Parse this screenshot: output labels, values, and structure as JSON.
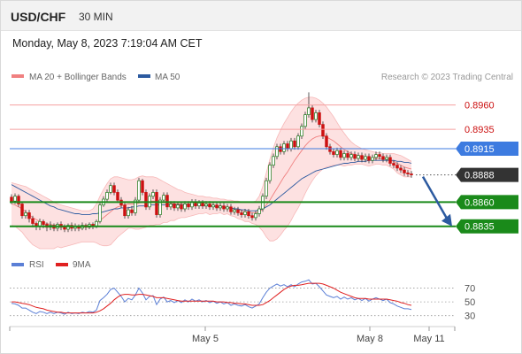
{
  "header": {
    "symbol": "USD/CHF",
    "timeframe": "30 MIN"
  },
  "datetime": "Monday, May 8, 2023 7:19:04 AM CET",
  "legend_price": [
    {
      "label": "MA 20 + Bollinger Bands",
      "color": "#f08080"
    },
    {
      "label": "MA 50",
      "color": "#2c5aa0"
    }
  ],
  "credit": "Research © 2023 Trading Central",
  "legend_rsi": [
    {
      "label": "RSI",
      "color": "#5b7fd6"
    },
    {
      "label": "9MA",
      "color": "#e02020"
    }
  ],
  "colors": {
    "resistance": "#f4a0a0",
    "resistance_label": "#cc1111",
    "pivot": "#3d7be0",
    "support": "#1a8a1a",
    "current": "#333333",
    "arrow": "#2c5aa0",
    "band_fill": "#fde1e1",
    "candle_up": "#1a7a1a",
    "candle_down": "#cc1111"
  },
  "chart_data": {
    "type": "candlestick",
    "price_levels": [
      {
        "value": 0.896,
        "label": "0.8960",
        "kind": "resistance"
      },
      {
        "value": 0.8935,
        "label": "0.8935",
        "kind": "resistance"
      },
      {
        "value": 0.8915,
        "label": "0.8915",
        "kind": "pivot"
      },
      {
        "value": 0.8888,
        "label": "0.8888",
        "kind": "current"
      },
      {
        "value": 0.886,
        "label": "0.8860",
        "kind": "support"
      },
      {
        "value": 0.8835,
        "label": "0.8835",
        "kind": "support"
      }
    ],
    "price_range": [
      0.8822,
      0.8977
    ],
    "x_ticks": [
      "May 5",
      "May 8",
      "May 11"
    ],
    "candles": [
      [
        0.8865,
        0.8861,
        0.8868,
        0.8858
      ],
      [
        0.8861,
        0.8866,
        0.8869,
        0.8858
      ],
      [
        0.8866,
        0.8858,
        0.8868,
        0.8855
      ],
      [
        0.8858,
        0.8846,
        0.886,
        0.8843
      ],
      [
        0.8846,
        0.8849,
        0.8852,
        0.8843
      ],
      [
        0.8849,
        0.8843,
        0.8852,
        0.8839
      ],
      [
        0.8843,
        0.8838,
        0.8846,
        0.8834
      ],
      [
        0.8838,
        0.8835,
        0.884,
        0.8831
      ],
      [
        0.8835,
        0.884,
        0.8843,
        0.8831
      ],
      [
        0.884,
        0.8837,
        0.8842,
        0.8833
      ],
      [
        0.8837,
        0.8834,
        0.8839,
        0.883
      ],
      [
        0.8834,
        0.8836,
        0.884,
        0.8831
      ],
      [
        0.8836,
        0.8833,
        0.8838,
        0.883
      ],
      [
        0.8833,
        0.8837,
        0.8839,
        0.883
      ],
      [
        0.8837,
        0.8834,
        0.884,
        0.8831
      ],
      [
        0.8834,
        0.8832,
        0.8837,
        0.8829
      ],
      [
        0.8832,
        0.8836,
        0.8838,
        0.8829
      ],
      [
        0.8836,
        0.8833,
        0.8839,
        0.883
      ],
      [
        0.8833,
        0.8835,
        0.8838,
        0.883
      ],
      [
        0.8835,
        0.8833,
        0.8837,
        0.883
      ],
      [
        0.8833,
        0.8836,
        0.8839,
        0.8831
      ],
      [
        0.8836,
        0.8834,
        0.8838,
        0.8831
      ],
      [
        0.8834,
        0.8837,
        0.8839,
        0.8832
      ],
      [
        0.8837,
        0.8835,
        0.8839,
        0.8832
      ],
      [
        0.8835,
        0.884,
        0.8842,
        0.8833
      ],
      [
        0.884,
        0.8857,
        0.8859,
        0.8838
      ],
      [
        0.8857,
        0.8863,
        0.8866,
        0.8855
      ],
      [
        0.8863,
        0.887,
        0.8873,
        0.886
      ],
      [
        0.887,
        0.8877,
        0.888,
        0.8868
      ],
      [
        0.8877,
        0.887,
        0.888,
        0.8867
      ],
      [
        0.887,
        0.8862,
        0.8873,
        0.8859
      ],
      [
        0.8862,
        0.8857,
        0.8865,
        0.8854
      ],
      [
        0.8857,
        0.8846,
        0.8859,
        0.8843
      ],
      [
        0.8846,
        0.8852,
        0.8855,
        0.8843
      ],
      [
        0.8852,
        0.8849,
        0.8856,
        0.8846
      ],
      [
        0.8849,
        0.8862,
        0.8865,
        0.8846
      ],
      [
        0.8862,
        0.8882,
        0.8885,
        0.8859
      ],
      [
        0.8882,
        0.887,
        0.8884,
        0.8867
      ],
      [
        0.887,
        0.8855,
        0.8873,
        0.8852
      ],
      [
        0.8855,
        0.8866,
        0.8869,
        0.8852
      ],
      [
        0.8866,
        0.887,
        0.8873,
        0.8863
      ],
      [
        0.887,
        0.8847,
        0.8873,
        0.8844
      ],
      [
        0.8847,
        0.8862,
        0.8865,
        0.8844
      ],
      [
        0.8862,
        0.8867,
        0.887,
        0.8859
      ],
      [
        0.8867,
        0.8855,
        0.887,
        0.8852
      ],
      [
        0.8855,
        0.8858,
        0.8861,
        0.8852
      ],
      [
        0.8858,
        0.8854,
        0.8861,
        0.8851
      ],
      [
        0.8854,
        0.8857,
        0.886,
        0.8851
      ],
      [
        0.8857,
        0.8853,
        0.886,
        0.885
      ],
      [
        0.8853,
        0.8858,
        0.8861,
        0.885
      ],
      [
        0.8858,
        0.8855,
        0.8861,
        0.8852
      ],
      [
        0.8855,
        0.886,
        0.8863,
        0.8852
      ],
      [
        0.886,
        0.8856,
        0.8863,
        0.8853
      ],
      [
        0.8856,
        0.8859,
        0.8862,
        0.8853
      ],
      [
        0.8859,
        0.8856,
        0.8862,
        0.8853
      ],
      [
        0.8856,
        0.8858,
        0.8861,
        0.8853
      ],
      [
        0.8858,
        0.8855,
        0.8861,
        0.8852
      ],
      [
        0.8855,
        0.8857,
        0.886,
        0.8852
      ],
      [
        0.8857,
        0.8854,
        0.886,
        0.8851
      ],
      [
        0.8854,
        0.8856,
        0.8859,
        0.8851
      ],
      [
        0.8856,
        0.8853,
        0.8859,
        0.885
      ],
      [
        0.8853,
        0.8855,
        0.8858,
        0.885
      ],
      [
        0.8855,
        0.885,
        0.8858,
        0.8847
      ],
      [
        0.885,
        0.8852,
        0.8855,
        0.8847
      ],
      [
        0.8852,
        0.8849,
        0.8855,
        0.8846
      ],
      [
        0.8849,
        0.8847,
        0.8852,
        0.8844
      ],
      [
        0.8847,
        0.885,
        0.8853,
        0.8844
      ],
      [
        0.885,
        0.8846,
        0.8853,
        0.8843
      ],
      [
        0.8846,
        0.8844,
        0.8849,
        0.8841
      ],
      [
        0.8844,
        0.8848,
        0.8851,
        0.8841
      ],
      [
        0.8848,
        0.8853,
        0.8856,
        0.8845
      ],
      [
        0.8853,
        0.8866,
        0.8869,
        0.885
      ],
      [
        0.8866,
        0.8882,
        0.8885,
        0.8863
      ],
      [
        0.8882,
        0.8898,
        0.8901,
        0.8879
      ],
      [
        0.8898,
        0.8907,
        0.891,
        0.8895
      ],
      [
        0.8907,
        0.8917,
        0.892,
        0.8904
      ],
      [
        0.8917,
        0.8912,
        0.892,
        0.8909
      ],
      [
        0.8912,
        0.892,
        0.8923,
        0.8909
      ],
      [
        0.892,
        0.8915,
        0.8923,
        0.8912
      ],
      [
        0.8915,
        0.8923,
        0.8926,
        0.8912
      ],
      [
        0.8923,
        0.8917,
        0.8926,
        0.8914
      ],
      [
        0.8917,
        0.8928,
        0.8931,
        0.8914
      ],
      [
        0.8928,
        0.8938,
        0.8941,
        0.8925
      ],
      [
        0.8938,
        0.895,
        0.8953,
        0.8935
      ],
      [
        0.895,
        0.8957,
        0.8973,
        0.8947
      ],
      [
        0.8957,
        0.8945,
        0.896,
        0.8942
      ],
      [
        0.8945,
        0.8952,
        0.8955,
        0.8942
      ],
      [
        0.8952,
        0.894,
        0.8955,
        0.8937
      ],
      [
        0.894,
        0.8928,
        0.8943,
        0.8925
      ],
      [
        0.8928,
        0.8917,
        0.8931,
        0.8914
      ],
      [
        0.8917,
        0.8912,
        0.892,
        0.8909
      ],
      [
        0.8912,
        0.8909,
        0.8915,
        0.8906
      ],
      [
        0.8909,
        0.8913,
        0.8916,
        0.8906
      ],
      [
        0.8913,
        0.8906,
        0.8916,
        0.8903
      ],
      [
        0.8906,
        0.891,
        0.8913,
        0.8903
      ],
      [
        0.891,
        0.8906,
        0.8913,
        0.8903
      ],
      [
        0.8906,
        0.8909,
        0.8912,
        0.8903
      ],
      [
        0.8909,
        0.8905,
        0.8912,
        0.8902
      ],
      [
        0.8905,
        0.8908,
        0.8911,
        0.8902
      ],
      [
        0.8908,
        0.8904,
        0.8911,
        0.8901
      ],
      [
        0.8904,
        0.8907,
        0.891,
        0.8901
      ],
      [
        0.8907,
        0.8903,
        0.891,
        0.89
      ],
      [
        0.8903,
        0.8906,
        0.8909,
        0.89
      ],
      [
        0.8906,
        0.8909,
        0.8912,
        0.8903
      ],
      [
        0.8909,
        0.8907,
        0.8912,
        0.8904
      ],
      [
        0.8907,
        0.8904,
        0.891,
        0.8901
      ],
      [
        0.8904,
        0.8906,
        0.8909,
        0.8901
      ],
      [
        0.8906,
        0.89,
        0.8909,
        0.8897
      ],
      [
        0.89,
        0.8898,
        0.8903,
        0.8895
      ],
      [
        0.8898,
        0.8895,
        0.8901,
        0.8892
      ],
      [
        0.8895,
        0.8893,
        0.8898,
        0.889
      ],
      [
        0.8893,
        0.889,
        0.8896,
        0.8887
      ],
      [
        0.889,
        0.8889,
        0.8893,
        0.8886
      ],
      [
        0.8889,
        0.8888,
        0.8892,
        0.8885
      ]
    ],
    "ma20": [
      0.8858,
      0.8857,
      0.8855,
      0.8853,
      0.885,
      0.8847,
      0.8844,
      0.8842,
      0.884,
      0.8839,
      0.8838,
      0.8837,
      0.8836,
      0.8836,
      0.8835,
      0.8835,
      0.8835,
      0.8835,
      0.8835,
      0.8835,
      0.8835,
      0.8835,
      0.8835,
      0.8836,
      0.8838,
      0.8841,
      0.8844,
      0.8847,
      0.885,
      0.8853,
      0.8855,
      0.8856,
      0.8857,
      0.8858,
      0.8858,
      0.8858,
      0.8859,
      0.886,
      0.886,
      0.8861,
      0.8861,
      0.8861,
      0.886,
      0.886,
      0.8859,
      0.8859,
      0.8858,
      0.8858,
      0.8858,
      0.8857,
      0.8857,
      0.8857,
      0.8857,
      0.8857,
      0.8857,
      0.8857,
      0.8856,
      0.8856,
      0.8856,
      0.8856,
      0.8855,
      0.8855,
      0.8854,
      0.8853,
      0.8852,
      0.8851,
      0.885,
      0.885,
      0.8849,
      0.8849,
      0.885,
      0.8853,
      0.8857,
      0.8862,
      0.8868,
      0.8874,
      0.888,
      0.8886,
      0.8891,
      0.8897,
      0.8903,
      0.8908,
      0.8913,
      0.8918,
      0.8922,
      0.8925,
      0.8927,
      0.8928,
      0.8928,
      0.8927,
      0.8925,
      0.8923,
      0.892,
      0.8917,
      0.8914,
      0.8912,
      0.891,
      0.8909,
      0.8908,
      0.8907,
      0.8906,
      0.8905,
      0.8905,
      0.8905,
      0.8905,
      0.8904,
      0.8904,
      0.8903,
      0.8902,
      0.89,
      0.8898,
      0.8896,
      0.8895,
      0.8894
    ],
    "bb_upper": [
      0.888,
      0.8879,
      0.8878,
      0.8877,
      0.8876,
      0.8874,
      0.8872,
      0.887,
      0.8868,
      0.8866,
      0.8864,
      0.8862,
      0.886,
      0.8858,
      0.8857,
      0.8856,
      0.8855,
      0.8854,
      0.8853,
      0.8852,
      0.8851,
      0.8851,
      0.8851,
      0.8853,
      0.8858,
      0.8866,
      0.8873,
      0.8879,
      0.8884,
      0.8886,
      0.8886,
      0.8885,
      0.8884,
      0.8883,
      0.8883,
      0.8884,
      0.8886,
      0.8887,
      0.8886,
      0.8886,
      0.8886,
      0.8885,
      0.8883,
      0.8881,
      0.8879,
      0.8877,
      0.8875,
      0.8873,
      0.8872,
      0.887,
      0.8869,
      0.8868,
      0.8867,
      0.8866,
      0.8866,
      0.8865,
      0.8865,
      0.8864,
      0.8864,
      0.8863,
      0.8863,
      0.8862,
      0.8862,
      0.8861,
      0.8861,
      0.886,
      0.886,
      0.886,
      0.886,
      0.8861,
      0.8866,
      0.8876,
      0.889,
      0.8904,
      0.8916,
      0.8926,
      0.8934,
      0.8941,
      0.8947,
      0.8953,
      0.8958,
      0.8962,
      0.8965,
      0.8967,
      0.8968,
      0.8968,
      0.8967,
      0.8965,
      0.8962,
      0.8958,
      0.8953,
      0.8948,
      0.8942,
      0.8936,
      0.8931,
      0.8926,
      0.8922,
      0.8919,
      0.8917,
      0.8915,
      0.8914,
      0.8913,
      0.8912,
      0.8911,
      0.8911,
      0.891,
      0.891,
      0.891,
      0.891,
      0.8909,
      0.8908,
      0.8906,
      0.8904,
      0.8902
    ],
    "bb_lower": [
      0.8836,
      0.8835,
      0.8832,
      0.8829,
      0.8824,
      0.882,
      0.8816,
      0.8814,
      0.8812,
      0.8812,
      0.8812,
      0.8812,
      0.8812,
      0.8814,
      0.8813,
      0.8814,
      0.8815,
      0.8816,
      0.8817,
      0.8818,
      0.8819,
      0.8819,
      0.8819,
      0.8819,
      0.8818,
      0.8816,
      0.8815,
      0.8815,
      0.8816,
      0.882,
      0.8824,
      0.8827,
      0.883,
      0.8833,
      0.8833,
      0.8832,
      0.8832,
      0.8833,
      0.8834,
      0.8836,
      0.8836,
      0.8837,
      0.8837,
      0.8839,
      0.8839,
      0.8841,
      0.8841,
      0.8843,
      0.8844,
      0.8844,
      0.8845,
      0.8846,
      0.8847,
      0.8848,
      0.8848,
      0.8849,
      0.8847,
      0.8848,
      0.8848,
      0.8849,
      0.8847,
      0.8848,
      0.8846,
      0.8845,
      0.8843,
      0.8842,
      0.884,
      0.884,
      0.8838,
      0.8837,
      0.8834,
      0.883,
      0.8824,
      0.882,
      0.882,
      0.8822,
      0.8826,
      0.8831,
      0.8835,
      0.8841,
      0.8848,
      0.8854,
      0.8861,
      0.8869,
      0.8876,
      0.8882,
      0.8887,
      0.8891,
      0.8894,
      0.8896,
      0.8897,
      0.8898,
      0.8898,
      0.8898,
      0.8897,
      0.8898,
      0.8898,
      0.8899,
      0.8899,
      0.8899,
      0.8898,
      0.8897,
      0.8898,
      0.8899,
      0.8899,
      0.8898,
      0.8898,
      0.8896,
      0.8894,
      0.889,
      0.8888,
      0.8886,
      0.8886,
      0.8886
    ],
    "ma50": [
      0.8878,
      0.8876,
      0.8874,
      0.8872,
      0.887,
      0.8868,
      0.8866,
      0.8864,
      0.8862,
      0.886,
      0.8858,
      0.8856,
      0.8855,
      0.8853,
      0.8852,
      0.8851,
      0.885,
      0.8849,
      0.8848,
      0.8848,
      0.8847,
      0.8847,
      0.8847,
      0.8848,
      0.8848,
      0.8849,
      0.885,
      0.8851,
      0.8852,
      0.8853,
      0.8853,
      0.8854,
      0.8854,
      0.8854,
      0.8855,
      0.8855,
      0.8856,
      0.8856,
      0.8856,
      0.8857,
      0.8857,
      0.8857,
      0.8857,
      0.8857,
      0.8857,
      0.8857,
      0.8857,
      0.8857,
      0.8857,
      0.8857,
      0.8857,
      0.8857,
      0.8857,
      0.8857,
      0.8856,
      0.8856,
      0.8856,
      0.8856,
      0.8855,
      0.8855,
      0.8855,
      0.8854,
      0.8854,
      0.8853,
      0.8853,
      0.8852,
      0.8852,
      0.8851,
      0.8851,
      0.8851,
      0.8852,
      0.8853,
      0.8855,
      0.8857,
      0.886,
      0.8863,
      0.8866,
      0.8869,
      0.8872,
      0.8875,
      0.8878,
      0.8881,
      0.8884,
      0.8886,
      0.8888,
      0.889,
      0.8892,
      0.8893,
      0.8894,
      0.8895,
      0.8896,
      0.8897,
      0.8898,
      0.8899,
      0.89,
      0.89,
      0.8901,
      0.8901,
      0.8902,
      0.8902,
      0.8902,
      0.8903,
      0.8903,
      0.8903,
      0.8903,
      0.8903,
      0.8903,
      0.8903,
      0.8903,
      0.8902,
      0.8902,
      0.8901,
      0.8901,
      0.89
    ],
    "rsi": [
      48,
      47,
      45,
      41,
      41,
      38,
      35,
      33,
      36,
      35,
      33,
      35,
      33,
      35,
      34,
      32,
      35,
      33,
      34,
      33,
      35,
      34,
      36,
      35,
      38,
      52,
      56,
      61,
      68,
      70,
      64,
      58,
      50,
      55,
      53,
      60,
      70,
      63,
      53,
      58,
      59,
      46,
      54,
      57,
      50,
      52,
      49,
      52,
      49,
      53,
      50,
      54,
      51,
      53,
      50,
      52,
      49,
      51,
      48,
      50,
      47,
      49,
      45,
      47,
      45,
      44,
      46,
      43,
      41,
      44,
      47,
      56,
      64,
      70,
      73,
      76,
      73,
      75,
      72,
      75,
      72,
      76,
      79,
      80,
      82,
      76,
      77,
      72,
      66,
      60,
      58,
      56,
      58,
      54,
      57,
      54,
      56,
      53,
      55,
      52,
      55,
      51,
      54,
      56,
      54,
      52,
      54,
      49,
      47,
      44,
      42,
      40,
      40,
      39
    ],
    "rsi_ma9": [
      50,
      50,
      49,
      48,
      47,
      46,
      44,
      42,
      41,
      40,
      38,
      37,
      36,
      35,
      35,
      34,
      34,
      34,
      34,
      34,
      34,
      34,
      34,
      34,
      35,
      37,
      40,
      44,
      48,
      53,
      57,
      60,
      61,
      61,
      60,
      60,
      61,
      61,
      60,
      59,
      58,
      56,
      56,
      56,
      55,
      54,
      53,
      52,
      51,
      51,
      51,
      51,
      51,
      51,
      51,
      51,
      51,
      51,
      50,
      50,
      50,
      49,
      49,
      48,
      48,
      47,
      47,
      46,
      45,
      45,
      45,
      46,
      49,
      52,
      56,
      60,
      64,
      68,
      71,
      73,
      74,
      74,
      75,
      76,
      77,
      77,
      77,
      77,
      76,
      74,
      72,
      70,
      67,
      64,
      62,
      60,
      58,
      56,
      55,
      55,
      55,
      54,
      54,
      54,
      54,
      54,
      54,
      53,
      52,
      51,
      49,
      48,
      46,
      45
    ],
    "rsi_levels": [
      70,
      50,
      30
    ],
    "rsi_range": [
      18,
      90
    ]
  }
}
